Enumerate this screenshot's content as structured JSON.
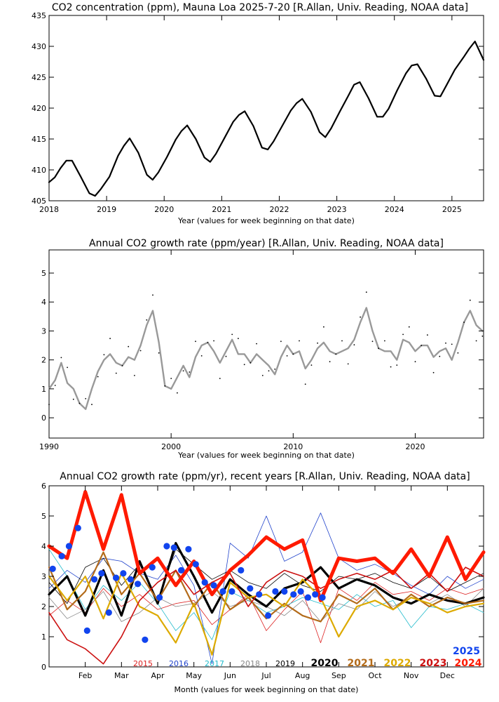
{
  "chart_data": [
    {
      "type": "line",
      "title": "CO2 concentration (ppm), Mauna Loa 2025-7-20 [R.Allan, Univ. Reading, NOAA data]",
      "xlabel": "Year (values for week beginning on that date)",
      "ylabel": "",
      "xlim": [
        2018.0,
        2025.55
      ],
      "ylim": [
        405,
        435
      ],
      "xticks": [
        2018,
        2019,
        2020,
        2021,
        2022,
        2023,
        2024,
        2025
      ],
      "xtick_labels": [
        "2018",
        "2019",
        "2020",
        "2021",
        "2022",
        "2023",
        "2024",
        "2025"
      ],
      "yticks": [
        405,
        410,
        415,
        420,
        425,
        430,
        435
      ],
      "ytick_labels": [
        "405",
        "410",
        "415",
        "420",
        "425",
        "430",
        "435"
      ],
      "series": [
        {
          "name": "CO2 weekly",
          "color": "#000000",
          "x": [
            2018.0,
            2018.1,
            2018.2,
            2018.3,
            2018.4,
            2018.55,
            2018.7,
            2018.8,
            2018.9,
            2019.05,
            2019.2,
            2019.3,
            2019.4,
            2019.55,
            2019.7,
            2019.8,
            2019.9,
            2020.05,
            2020.2,
            2020.3,
            2020.4,
            2020.55,
            2020.7,
            2020.8,
            2020.9,
            2021.05,
            2021.2,
            2021.3,
            2021.4,
            2021.55,
            2021.7,
            2021.8,
            2021.9,
            2022.05,
            2022.2,
            2022.3,
            2022.4,
            2022.55,
            2022.7,
            2022.8,
            2022.9,
            2023.05,
            2023.2,
            2023.3,
            2023.4,
            2023.55,
            2023.7,
            2023.8,
            2023.9,
            2024.05,
            2024.2,
            2024.3,
            2024.4,
            2024.55,
            2024.7,
            2024.8,
            2024.9,
            2025.05,
            2025.2,
            2025.3,
            2025.4,
            2025.55
          ],
          "values": [
            408.0,
            408.8,
            410.3,
            411.5,
            411.5,
            408.9,
            406.2,
            405.8,
            406.9,
            408.9,
            412.3,
            413.9,
            415.1,
            412.8,
            409.2,
            408.4,
            409.6,
            412.1,
            414.9,
            416.3,
            417.2,
            415.0,
            412.0,
            411.3,
            412.6,
            415.2,
            417.8,
            418.9,
            419.5,
            417.1,
            413.6,
            413.3,
            414.6,
            417.1,
            419.6,
            420.8,
            421.5,
            419.4,
            416.1,
            415.3,
            416.7,
            419.4,
            422.0,
            423.8,
            424.2,
            421.6,
            418.6,
            418.6,
            419.9,
            422.9,
            425.6,
            426.9,
            427.1,
            424.8,
            422.0,
            421.9,
            423.6,
            426.2,
            428.2,
            429.6,
            430.8,
            427.8
          ]
        }
      ]
    },
    {
      "type": "line",
      "title": "Annual CO2 growth rate (ppm/year) [R.Allan, Univ. Reading, NOAA data]",
      "xlabel": "Year (values for week beginning on that date)",
      "ylabel": "",
      "xlim": [
        1990,
        2025.6
      ],
      "ylim": [
        -0.7,
        5.8
      ],
      "xticks": [
        1990,
        2000,
        2010,
        2020
      ],
      "xtick_labels": [
        "1990",
        "2000",
        "2010",
        "2020"
      ],
      "yticks": [
        0,
        1,
        2,
        3,
        4,
        5
      ],
      "ytick_labels": [
        "0",
        "1",
        "2",
        "3",
        "4",
        "5"
      ],
      "series": [
        {
          "name": "growth rate smoothed",
          "color": "#999999",
          "x": [
            1990.0,
            1990.5,
            1991.0,
            1991.5,
            1992.0,
            1992.5,
            1993.0,
            1993.5,
            1994.0,
            1994.5,
            1995.0,
            1995.5,
            1996.0,
            1996.5,
            1997.0,
            1997.5,
            1998.0,
            1998.5,
            1999.0,
            1999.5,
            2000.0,
            2000.5,
            2001.0,
            2001.5,
            2002.0,
            2002.5,
            2003.0,
            2003.5,
            2004.0,
            2004.5,
            2005.0,
            2005.5,
            2006.0,
            2006.5,
            2007.0,
            2007.5,
            2008.0,
            2008.5,
            2009.0,
            2009.5,
            2010.0,
            2010.5,
            2011.0,
            2011.5,
            2012.0,
            2012.5,
            2013.0,
            2013.5,
            2014.0,
            2014.5,
            2015.0,
            2015.5,
            2016.0,
            2016.5,
            2017.0,
            2017.5,
            2018.0,
            2018.5,
            2019.0,
            2019.5,
            2020.0,
            2020.5,
            2021.0,
            2021.5,
            2022.0,
            2022.5,
            2023.0,
            2023.5,
            2024.0,
            2024.5,
            2025.0,
            2025.5
          ],
          "values": [
            1.0,
            1.3,
            1.9,
            1.2,
            1.0,
            0.5,
            0.3,
            1.0,
            1.6,
            2.0,
            2.2,
            1.9,
            1.8,
            2.1,
            2.0,
            2.5,
            3.2,
            3.7,
            2.6,
            1.1,
            1.0,
            1.4,
            1.8,
            1.4,
            2.1,
            2.5,
            2.6,
            2.3,
            1.9,
            2.3,
            2.7,
            2.2,
            2.2,
            1.9,
            2.2,
            2.0,
            1.8,
            1.5,
            2.1,
            2.5,
            2.2,
            2.3,
            1.7,
            2.0,
            2.4,
            2.6,
            2.3,
            2.2,
            2.3,
            2.4,
            2.7,
            3.3,
            3.8,
            3.0,
            2.4,
            2.3,
            2.3,
            2.0,
            2.7,
            2.6,
            2.3,
            2.5,
            2.5,
            2.1,
            2.3,
            2.4,
            2.0,
            2.6,
            3.3,
            3.7,
            3.2,
            3.0
          ]
        }
      ]
    },
    {
      "type": "line",
      "title": "Annual CO2 growth rate (ppm/yr), recent years [R.Allan, Univ. Reading, NOAA data]",
      "xlabel": "Month (values for week beginning on that date)",
      "ylabel": "",
      "xlim": [
        0,
        12
      ],
      "ylim": [
        0,
        6
      ],
      "xticks": [
        1,
        2,
        3,
        4,
        5,
        6,
        7,
        8,
        9,
        10,
        11
      ],
      "xtick_labels": [
        "Feb",
        "Mar",
        "Apr",
        "May",
        "Jun",
        "Jul",
        "Aug",
        "Sep",
        "Oct",
        "Nov",
        "Dec"
      ],
      "yticks": [
        0,
        1,
        2,
        3,
        4,
        5,
        6
      ],
      "ytick_labels": [
        "0",
        "1",
        "2",
        "3",
        "4",
        "5",
        "6"
      ],
      "legend": [
        "2015",
        "2016",
        "2017",
        "2018",
        "2019",
        "2020",
        "2021",
        "2022",
        "2023",
        "2024",
        "2025"
      ],
      "series": [
        {
          "name": "2015",
          "color": "#dd2222",
          "width": 0.8,
          "x": [
            0,
            0.5,
            1,
            1.5,
            2,
            2.5,
            3,
            3.5,
            4,
            4.5,
            5,
            5.5,
            6,
            6.5,
            7,
            7.5,
            8,
            8.5,
            9,
            9.5,
            10,
            10.5,
            11,
            11.5,
            12
          ],
          "values": [
            1.7,
            2.2,
            1.8,
            2.6,
            2.0,
            2.4,
            1.9,
            2.1,
            2.2,
            1.4,
            1.9,
            2.4,
            1.2,
            1.9,
            2.5,
            0.8,
            2.6,
            2.2,
            2.8,
            2.4,
            2.5,
            2.2,
            2.6,
            2.4,
            2.6
          ]
        },
        {
          "name": "2016",
          "color": "#2244cc",
          "width": 0.8,
          "x": [
            0,
            0.5,
            1,
            1.5,
            2,
            2.5,
            3,
            3.5,
            4,
            4.5,
            5,
            5.5,
            6,
            6.5,
            7,
            7.5,
            8,
            8.5,
            9,
            9.5,
            10,
            10.5,
            11,
            11.5,
            12
          ],
          "values": [
            2.6,
            3.2,
            2.8,
            3.6,
            3.5,
            3.1,
            2.9,
            3.7,
            2.7,
            0.1,
            4.1,
            3.6,
            5.0,
            3.5,
            3.8,
            5.1,
            3.6,
            3.2,
            3.4,
            3.1,
            2.7,
            2.4,
            3.0,
            2.6,
            2.9
          ]
        },
        {
          "name": "2017",
          "color": "#22bbcc",
          "width": 0.8,
          "x": [
            0,
            0.5,
            1,
            1.5,
            2,
            2.5,
            3,
            3.5,
            4,
            4.5,
            5,
            5.5,
            6,
            6.5,
            7,
            7.5,
            8,
            8.5,
            9,
            9.5,
            10,
            10.5,
            11,
            11.5,
            12
          ],
          "values": [
            3.9,
            3.0,
            1.9,
            2.7,
            2.2,
            2.8,
            2.1,
            1.2,
            1.8,
            0.9,
            2.5,
            2.2,
            1.8,
            2.0,
            2.3,
            2.1,
            1.9,
            2.4,
            2.0,
            2.2,
            1.3,
            2.0,
            1.9,
            2.1,
            1.8
          ]
        },
        {
          "name": "2018",
          "color": "#888888",
          "width": 0.8,
          "x": [
            0,
            0.5,
            1,
            1.5,
            2,
            2.5,
            3,
            3.5,
            4,
            4.5,
            5,
            5.5,
            6,
            6.5,
            7,
            7.5,
            8,
            8.5,
            9,
            9.5,
            10,
            10.5,
            11,
            11.5,
            12
          ],
          "values": [
            2.3,
            1.6,
            1.9,
            2.5,
            1.5,
            1.8,
            2.3,
            2.0,
            2.1,
            2.5,
            2.0,
            2.2,
            2.0,
            1.7,
            2.2,
            1.5,
            2.1,
            1.9,
            2.5,
            2.0,
            2.3,
            2.1,
            2.4,
            2.0,
            2.6
          ]
        },
        {
          "name": "2019",
          "color": "#000000",
          "width": 0.8,
          "x": [
            0,
            0.5,
            1,
            1.5,
            2,
            2.5,
            3,
            3.5,
            4,
            4.5,
            5,
            5.5,
            6,
            6.5,
            7,
            7.5,
            8,
            8.5,
            9,
            9.5,
            10,
            10.5,
            11,
            11.5,
            12
          ],
          "values": [
            2.8,
            2.1,
            3.3,
            3.6,
            2.7,
            3.4,
            2.2,
            3.9,
            3.4,
            2.9,
            3.2,
            2.8,
            2.6,
            3.1,
            2.7,
            2.5,
            3.0,
            2.9,
            3.1,
            2.8,
            2.6,
            3.0,
            2.5,
            2.8,
            3.1
          ]
        },
        {
          "name": "2020",
          "color": "#000000",
          "width": 3.2,
          "x": [
            0,
            0.5,
            1,
            1.5,
            2,
            2.5,
            3,
            3.5,
            4,
            4.5,
            5,
            5.5,
            6,
            6.5,
            7,
            7.5,
            8,
            8.5,
            9,
            9.5,
            10,
            10.5,
            11,
            11.5,
            12
          ],
          "values": [
            2.4,
            3.0,
            1.7,
            3.2,
            1.7,
            3.5,
            2.1,
            4.1,
            3.0,
            1.8,
            2.9,
            2.4,
            2.0,
            2.6,
            2.8,
            3.3,
            2.6,
            2.9,
            2.7,
            2.3,
            2.1,
            2.4,
            2.2,
            2.1,
            2.3
          ]
        },
        {
          "name": "2021",
          "color": "#b36b1a",
          "width": 2.2,
          "x": [
            0,
            0.5,
            1,
            1.5,
            2,
            2.5,
            3,
            3.5,
            4,
            4.5,
            5,
            5.5,
            6,
            6.5,
            7,
            7.5,
            8,
            8.5,
            9,
            9.5,
            10,
            10.5,
            11,
            11.5,
            12
          ],
          "values": [
            3.3,
            1.9,
            2.5,
            3.8,
            2.4,
            3.1,
            2.2,
            3.2,
            2.0,
            2.8,
            1.9,
            2.3,
            1.6,
            2.1,
            1.7,
            1.5,
            2.4,
            2.1,
            2.6,
            1.9,
            2.4,
            2.0,
            2.3,
            2.1,
            2.2
          ]
        },
        {
          "name": "2022",
          "color": "#ddaa00",
          "width": 2.2,
          "x": [
            0,
            0.5,
            1,
            1.5,
            2,
            2.5,
            3,
            3.5,
            4,
            4.5,
            5,
            5.5,
            6,
            6.5,
            7,
            7.5,
            8,
            8.5,
            9,
            9.5,
            10,
            10.5,
            11,
            11.5,
            12
          ],
          "values": [
            3.0,
            2.2,
            3.0,
            1.6,
            3.1,
            2.0,
            1.7,
            0.8,
            2.1,
            0.4,
            2.8,
            2.3,
            2.4,
            2.0,
            2.9,
            2.3,
            1.0,
            2.0,
            2.2,
            1.9,
            2.3,
            2.1,
            1.8,
            2.0,
            2.1
          ]
        },
        {
          "name": "2023",
          "color": "#cc1111",
          "width": 1.6,
          "x": [
            0,
            0.5,
            1,
            1.5,
            2,
            2.5,
            3,
            3.5,
            4,
            4.5,
            5,
            5.5,
            6,
            6.5,
            7,
            7.5,
            8,
            8.5,
            9,
            9.5,
            10,
            10.5,
            11,
            11.5,
            12
          ],
          "values": [
            1.8,
            0.9,
            0.6,
            0.1,
            1.0,
            2.2,
            2.8,
            3.2,
            2.4,
            2.8,
            3.1,
            2.0,
            2.8,
            3.2,
            3.0,
            2.6,
            2.9,
            3.1,
            2.9,
            3.2,
            2.6,
            3.1,
            2.5,
            3.3,
            3.0
          ]
        },
        {
          "name": "2024",
          "color": "#ff1a00",
          "width": 5.0,
          "x": [
            0,
            0.5,
            1,
            1.5,
            2,
            2.5,
            3,
            3.5,
            4,
            4.5,
            5,
            5.5,
            6,
            6.5,
            7,
            7.5,
            8,
            8.5,
            9,
            9.5,
            10,
            10.5,
            11,
            11.5,
            12
          ],
          "values": [
            4.0,
            3.6,
            5.8,
            3.9,
            5.7,
            3.1,
            3.6,
            2.7,
            3.5,
            2.4,
            3.2,
            3.7,
            4.3,
            3.9,
            4.2,
            2.2,
            3.6,
            3.5,
            3.6,
            3.1,
            3.9,
            3.0,
            4.3,
            2.9,
            3.8
          ]
        },
        {
          "name": "2025",
          "color": "#1144ee",
          "marker": "dot",
          "x": [
            0.1,
            0.35,
            0.55,
            0.8,
            1.05,
            1.25,
            1.45,
            1.65,
            1.85,
            2.05,
            2.25,
            2.45,
            2.65,
            2.85,
            3.05,
            3.25,
            3.45,
            3.65,
            3.85,
            4.05,
            4.3,
            4.55,
            4.8,
            5.05,
            5.3,
            5.55,
            5.8,
            6.05,
            6.25,
            6.5,
            6.75,
            6.95,
            7.15,
            7.35,
            7.55
          ],
          "values": [
            3.25,
            3.67,
            4.0,
            4.6,
            1.2,
            2.9,
            3.1,
            1.8,
            2.95,
            3.1,
            2.9,
            2.75,
            0.9,
            3.3,
            2.3,
            4.0,
            3.95,
            3.2,
            3.9,
            3.4,
            2.8,
            2.7,
            2.5,
            2.5,
            3.2,
            2.6,
            2.4,
            1.7,
            2.5,
            2.5,
            2.4,
            2.5,
            2.3,
            2.4,
            2.3
          ]
        }
      ]
    }
  ]
}
